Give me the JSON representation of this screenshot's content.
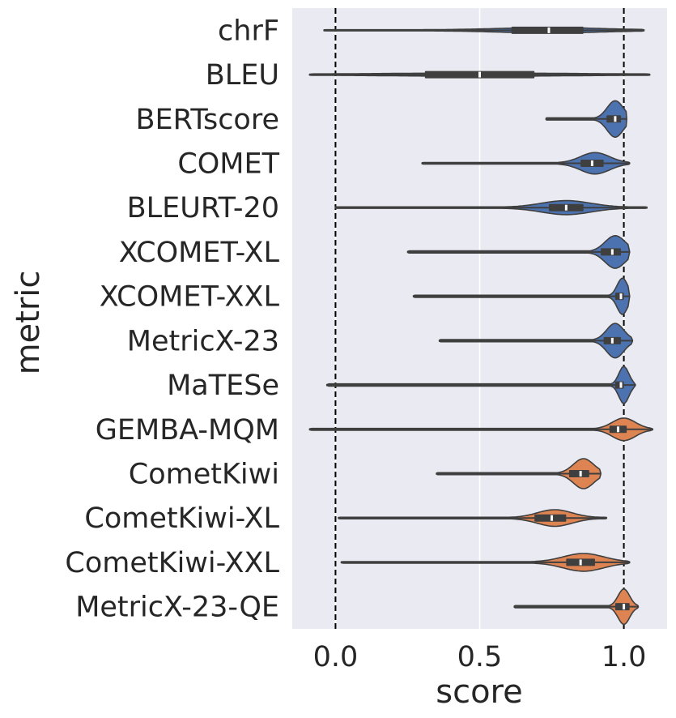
{
  "chart_data": {
    "type": "violin",
    "title": "",
    "xlabel": "score",
    "ylabel": "metric",
    "xlim": [
      -0.15,
      1.15
    ],
    "xticks": [
      0.0,
      0.5,
      1.0
    ],
    "xtick_labels": [
      "0.0",
      "0.5",
      "1.0"
    ],
    "grid": true,
    "reference_lines": [
      0.0,
      1.0
    ],
    "colors": {
      "reference": "#4c72b0",
      "qe": "#dd8452",
      "box": "#3f3f3f",
      "background": "#eaeaf2",
      "grid": "#ffffff",
      "text": "#262626"
    },
    "series": [
      {
        "name": "chrF",
        "group": "reference",
        "min": -0.04,
        "q1": 0.61,
        "median": 0.74,
        "q3": 0.86,
        "max": 1.07,
        "mode": 0.74,
        "spread": 0.17,
        "peak": 0.12
      },
      {
        "name": "BLEU",
        "group": "reference",
        "min": -0.09,
        "q1": 0.31,
        "median": 0.5,
        "q3": 0.69,
        "max": 1.09,
        "mode": 0.5,
        "spread": 0.3,
        "peak": 0.06
      },
      {
        "name": "BERTscore",
        "group": "reference",
        "min": 0.73,
        "q1": 0.94,
        "median": 0.97,
        "q3": 0.99,
        "max": 1.01,
        "mode": 0.97,
        "spread": 0.028,
        "peak": 0.95
      },
      {
        "name": "COMET",
        "group": "reference",
        "min": 0.3,
        "q1": 0.85,
        "median": 0.89,
        "q3": 0.93,
        "max": 1.02,
        "mode": 0.9,
        "spread": 0.05,
        "peak": 0.55
      },
      {
        "name": "BLEURT-20",
        "group": "reference",
        "min": 0.0,
        "q1": 0.74,
        "median": 0.8,
        "q3": 0.86,
        "max": 1.08,
        "mode": 0.8,
        "spread": 0.085,
        "peak": 0.35
      },
      {
        "name": "XCOMET-XL",
        "group": "reference",
        "min": 0.25,
        "q1": 0.92,
        "median": 0.96,
        "q3": 0.99,
        "max": 1.02,
        "mode": 0.97,
        "spread": 0.035,
        "peak": 0.85
      },
      {
        "name": "XCOMET-XXL",
        "group": "reference",
        "min": 0.27,
        "q1": 0.97,
        "median": 0.99,
        "q3": 1.0,
        "max": 1.02,
        "mode": 0.995,
        "spread": 0.018,
        "peak": 0.95
      },
      {
        "name": "MetricX-23",
        "group": "reference",
        "min": 0.36,
        "q1": 0.93,
        "median": 0.96,
        "q3": 0.99,
        "max": 1.03,
        "mode": 0.97,
        "spread": 0.03,
        "peak": 0.9
      },
      {
        "name": "MaTESe",
        "group": "reference",
        "min": -0.03,
        "q1": 0.97,
        "median": 0.99,
        "q3": 1.0,
        "max": 1.04,
        "mode": 1.0,
        "spread": 0.017,
        "peak": 0.98
      },
      {
        "name": "GEMBA-MQM",
        "group": "qe",
        "min": -0.09,
        "q1": 0.95,
        "median": 0.98,
        "q3": 1.01,
        "max": 1.1,
        "mode": 1.0,
        "spread": 0.04,
        "peak": 0.58
      },
      {
        "name": "CometKiwi",
        "group": "qe",
        "min": 0.35,
        "q1": 0.81,
        "median": 0.85,
        "q3": 0.88,
        "max": 0.92,
        "mode": 0.86,
        "spread": 0.035,
        "peak": 0.78
      },
      {
        "name": "CometKiwi-XL",
        "group": "qe",
        "min": 0.01,
        "q1": 0.69,
        "median": 0.75,
        "q3": 0.8,
        "max": 0.94,
        "mode": 0.76,
        "spread": 0.06,
        "peak": 0.42
      },
      {
        "name": "CometKiwi-XXL",
        "group": "qe",
        "min": 0.02,
        "q1": 0.8,
        "median": 0.85,
        "q3": 0.9,
        "max": 1.02,
        "mode": 0.86,
        "spread": 0.07,
        "peak": 0.45
      },
      {
        "name": "MetricX-23-QE",
        "group": "qe",
        "min": 0.62,
        "q1": 0.97,
        "median": 1.0,
        "q3": 1.02,
        "max": 1.05,
        "mode": 1.0,
        "spread": 0.02,
        "peak": 0.92
      }
    ]
  }
}
